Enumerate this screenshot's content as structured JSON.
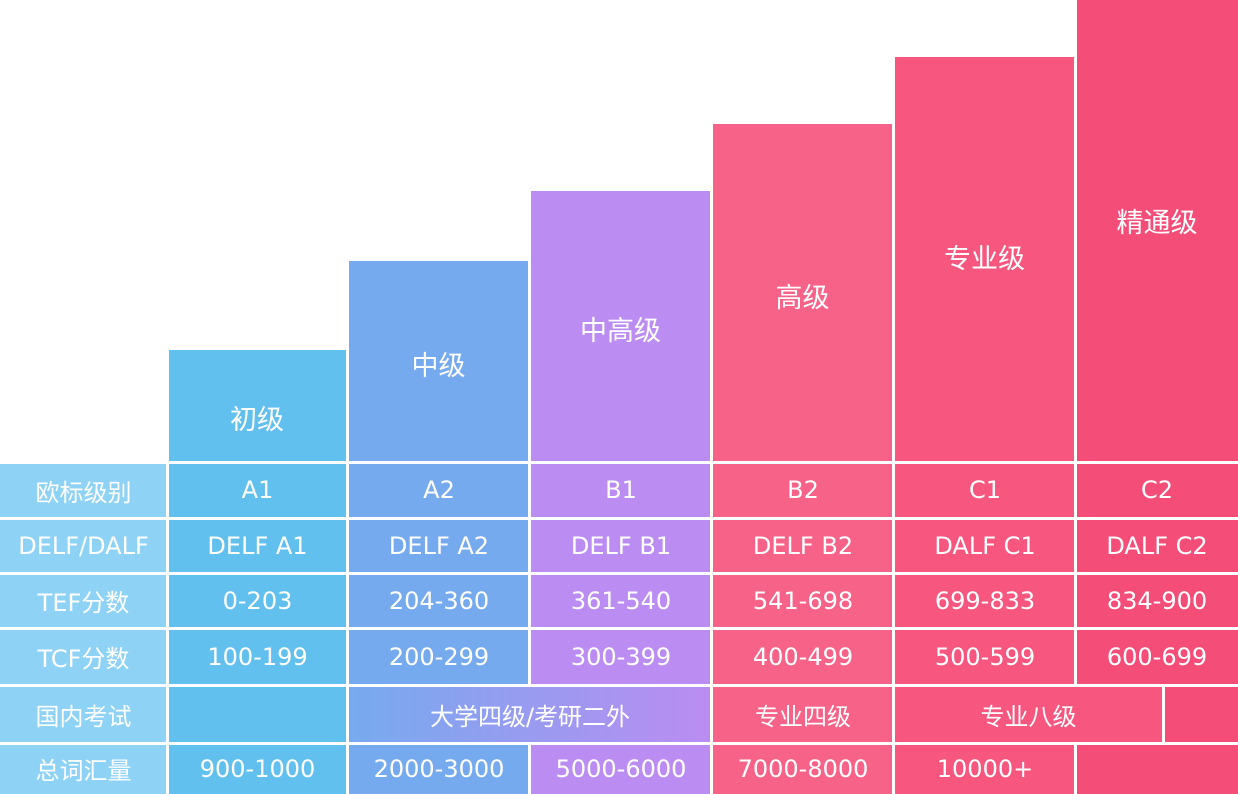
{
  "levels": [
    {
      "name": "初级",
      "cefr": "A1",
      "delf": "DELF A1",
      "tef": "0-203",
      "tcf": "100-199",
      "vocab": "900-1000",
      "color": "#62c0ee"
    },
    {
      "name": "中级",
      "cefr": "A2",
      "delf": "DELF A2",
      "tef": "204-360",
      "tcf": "200-299",
      "vocab": "2000-3000",
      "color": "#76aaee"
    },
    {
      "name": "中高级",
      "cefr": "B1",
      "delf": "DELF B1",
      "tef": "361-540",
      "tcf": "300-399",
      "vocab": "5000-6000",
      "color": "#bb8cf2"
    },
    {
      "name": "高级",
      "cefr": "B2",
      "delf": "DELF B2",
      "tef": "541-698",
      "tcf": "400-499",
      "vocab": "7000-8000",
      "color": "#f76288"
    },
    {
      "name": "专业级",
      "cefr": "C1",
      "delf": "DALF C1",
      "tef": "699-833",
      "tcf": "500-599",
      "vocab": "10000+",
      "color": "#f7567f"
    },
    {
      "name": "精通级",
      "cefr": "C2",
      "delf": "DALF C2",
      "tef": "834-900",
      "tcf": "600-699",
      "vocab": "",
      "color": "#f44d78"
    }
  ],
  "row_labels": {
    "cefr": "欧标级别",
    "delf": "DELF/DALF",
    "tef": "TEF分数",
    "tcf": "TCF分数",
    "domestic": "国内考试",
    "vocab": "总词汇量"
  },
  "domestic_exams": {
    "cet_kaoyan": "大学四级/考研二外",
    "tem4": "专业四级",
    "tem8": "专业八级"
  },
  "colors": {
    "label_column": "#8ed2f5",
    "white": "#ffffff"
  }
}
